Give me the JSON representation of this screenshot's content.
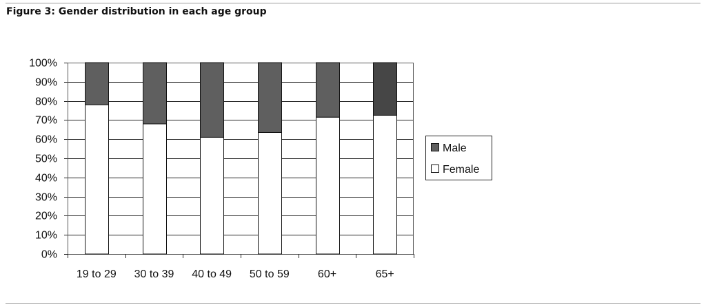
{
  "figure": {
    "title": "Figure 3: Gender distribution in each age group"
  },
  "chart_data": {
    "type": "bar",
    "stacked": true,
    "percent": true,
    "title": "Figure 3: Gender distribution in each age group",
    "xlabel": "",
    "ylabel": "",
    "categories": [
      "19 to 29",
      "30 to 39",
      "40 to 49",
      "50 to 59",
      "60+",
      "65+"
    ],
    "series": [
      {
        "name": "Female",
        "values": [
          78,
          68,
          61,
          63.5,
          71.5,
          72.5
        ],
        "color": "#ffffff"
      },
      {
        "name": "Male",
        "values": [
          22,
          32,
          39,
          36.5,
          28.5,
          27.5
        ],
        "color": "#5f5f5f"
      }
    ],
    "male_color_last": "#464646",
    "ylim": [
      0,
      100
    ],
    "yticks": [
      "0%",
      "10%",
      "20%",
      "30%",
      "40%",
      "50%",
      "60%",
      "70%",
      "80%",
      "90%",
      "100%"
    ],
    "grid": true,
    "legend": {
      "position": "right",
      "entries": [
        "Male",
        "Female"
      ]
    }
  }
}
